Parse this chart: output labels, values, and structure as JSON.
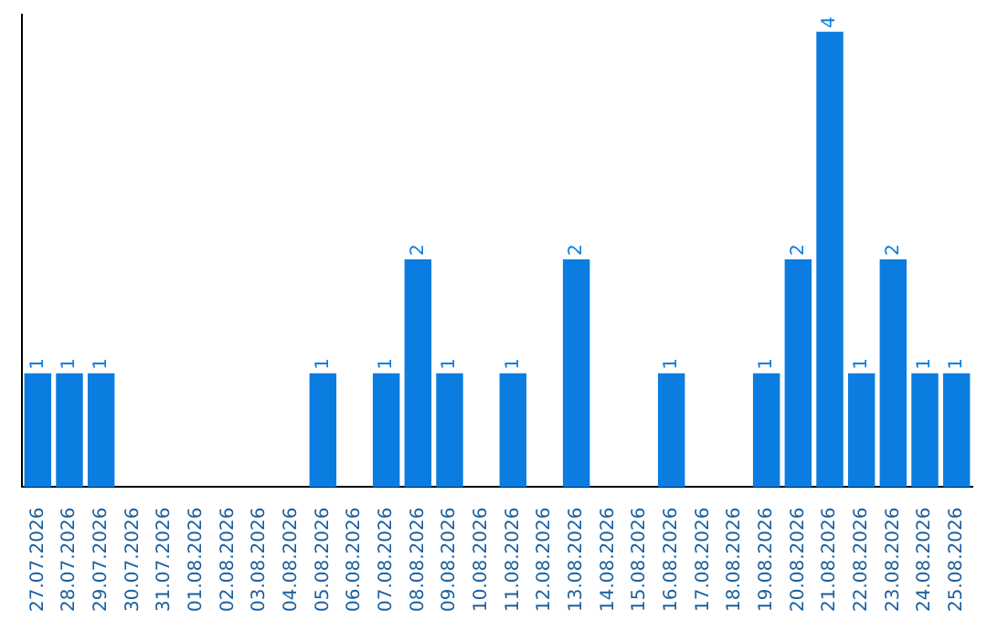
{
  "chart_data": {
    "type": "bar",
    "categories": [
      "27.07.2026",
      "28.07.2026",
      "29.07.2026",
      "30.07.2026",
      "31.07.2026",
      "01.08.2026",
      "02.08.2026",
      "03.08.2026",
      "04.08.2026",
      "05.08.2026",
      "06.08.2026",
      "07.08.2026",
      "08.08.2026",
      "09.08.2026",
      "10.08.2026",
      "11.08.2026",
      "12.08.2026",
      "13.08.2026",
      "14.08.2026",
      "15.08.2026",
      "16.08.2026",
      "17.08.2026",
      "18.08.2026",
      "19.08.2026",
      "20.08.2026",
      "21.08.2026",
      "22.08.2026",
      "23.08.2026",
      "24.08.2026",
      "25.08.2026"
    ],
    "values": [
      1,
      1,
      1,
      null,
      null,
      null,
      null,
      null,
      null,
      1,
      null,
      1,
      2,
      1,
      null,
      1,
      null,
      2,
      null,
      null,
      1,
      null,
      null,
      1,
      2,
      4,
      1,
      2,
      1,
      1
    ],
    "color": "#0b7de0",
    "ylim": [
      0,
      4.15
    ],
    "tick_labels": "x",
    "data_labels": true,
    "grid": false,
    "legend": false
  }
}
